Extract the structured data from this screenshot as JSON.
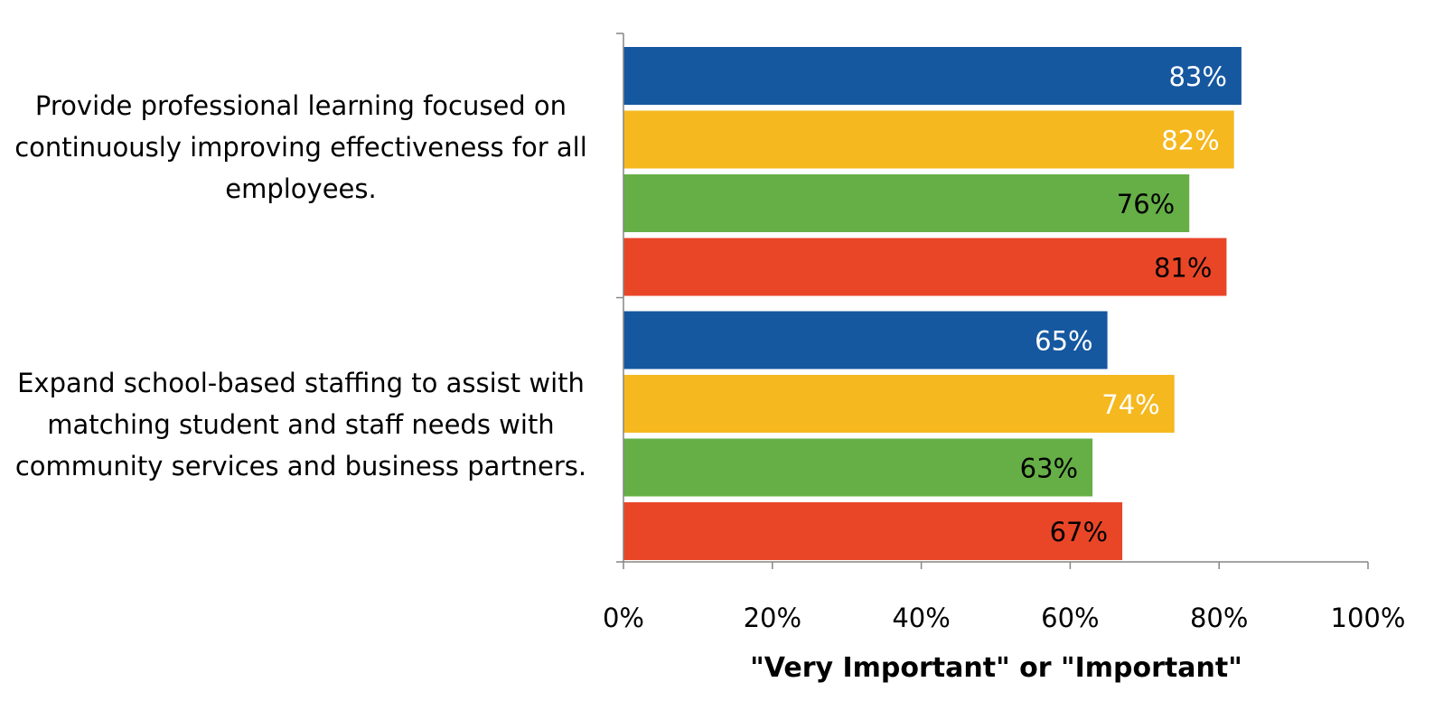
{
  "chart_data": {
    "type": "bar",
    "orientation": "horizontal",
    "categories": [
      "Provide professional learning focused on continuously improving effectiveness for all employees.",
      "Expand school-based staffing to assist with matching student and staff needs with community services and business partners."
    ],
    "category_lines": [
      [
        "Provide professional learning focused on",
        "continuously improving effectiveness for all",
        "employees."
      ],
      [
        "Expand school-based staffing to assist with",
        "matching student and staff needs with",
        "community services and business partners."
      ]
    ],
    "series": [
      {
        "color": "#1558A0",
        "label_color": "#FFFFFF",
        "values": [
          83,
          65
        ]
      },
      {
        "color": "#F5B81F",
        "label_color": "#FFFFFF",
        "values": [
          82,
          74
        ]
      },
      {
        "color": "#66AF47",
        "label_color": "#000000",
        "values": [
          76,
          63
        ]
      },
      {
        "color": "#E94628",
        "label_color": "#000000",
        "values": [
          81,
          67
        ]
      }
    ],
    "data_labels": [
      [
        "83%",
        "65%"
      ],
      [
        "82%",
        "74%"
      ],
      [
        "76%",
        "63%"
      ],
      [
        "81%",
        "67%"
      ]
    ],
    "x_ticks": [
      "0%",
      "20%",
      "40%",
      "60%",
      "80%",
      "100%"
    ],
    "xlim": [
      0,
      100
    ],
    "xlabel": "\"Very Important\" or \"Important\"",
    "title": "",
    "grid": false,
    "legend": "none"
  }
}
